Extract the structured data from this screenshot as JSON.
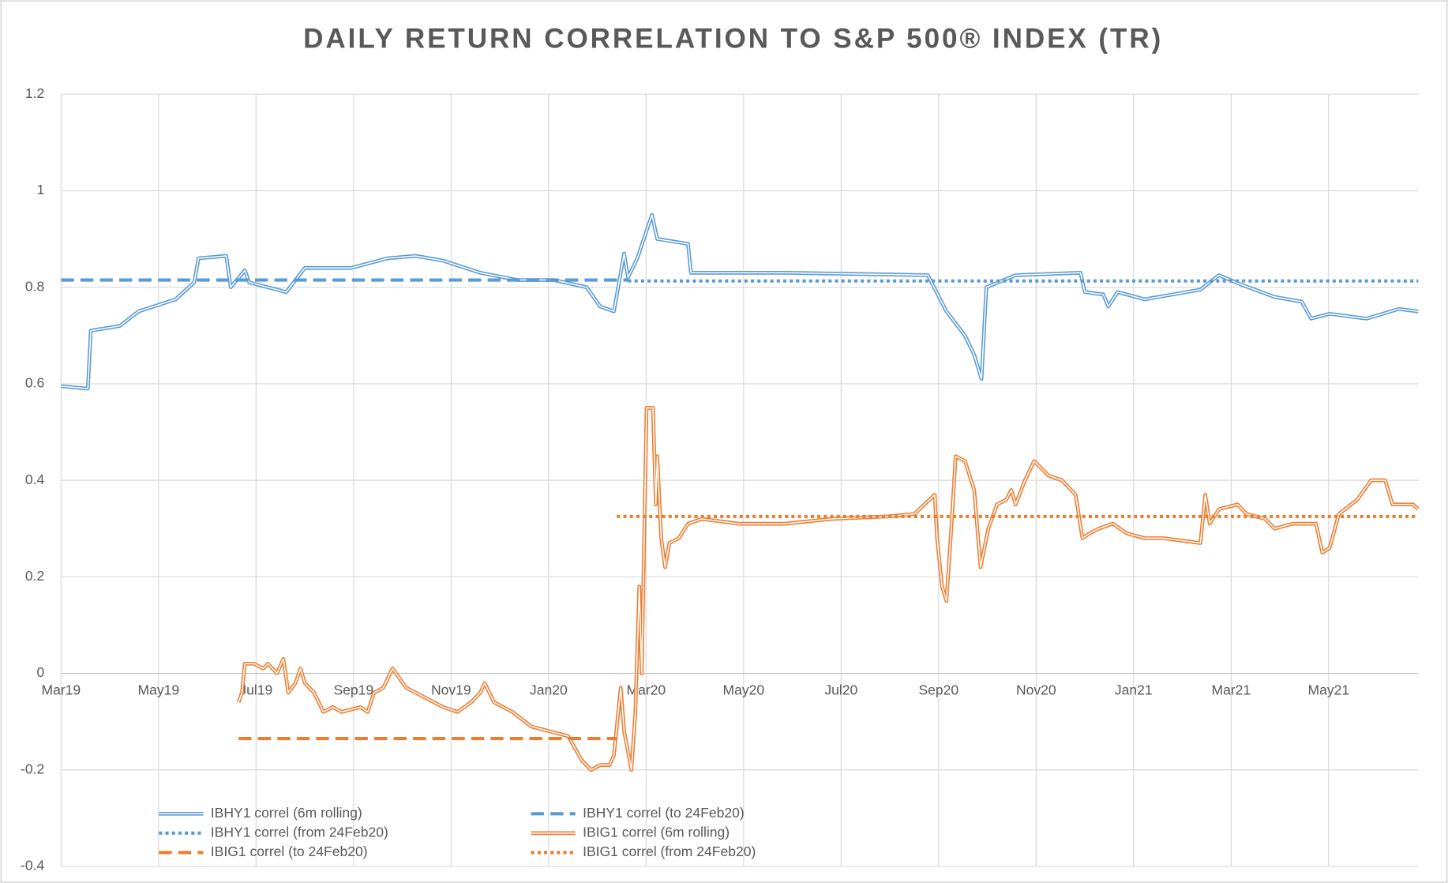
{
  "chart_data": {
    "type": "line",
    "title": "DAILY RETURN CORRELATION TO S&P 500® INDEX (TR)",
    "xlim": [
      0,
      27.84
    ],
    "xticks": [
      {
        "value": 0,
        "label": "Mar19"
      },
      {
        "value": 2,
        "label": "May19"
      },
      {
        "value": 4,
        "label": "Jul19"
      },
      {
        "value": 6,
        "label": "Sep19"
      },
      {
        "value": 8,
        "label": "Nov19"
      },
      {
        "value": 10,
        "label": "Jan20"
      },
      {
        "value": 12,
        "label": "Mar20"
      },
      {
        "value": 14,
        "label": "May20"
      },
      {
        "value": 16,
        "label": "Jul20"
      },
      {
        "value": 18,
        "label": "Sep20"
      },
      {
        "value": 20,
        "label": "Nov20"
      },
      {
        "value": 22,
        "label": "Jan21"
      },
      {
        "value": 24,
        "label": "Mar21"
      },
      {
        "value": 26,
        "label": "May21"
      }
    ],
    "ylim": [
      -0.4,
      1.2
    ],
    "yticks": [
      -0.4,
      -0.2,
      0,
      0.2,
      0.4,
      0.6,
      0.8,
      1,
      1.2
    ],
    "grid": true,
    "legend": "bottom-left",
    "series": [
      {
        "name": "IBHY1 correl (6m rolling)",
        "color": "#5b9bd5",
        "style": "double",
        "x": [
          0.0,
          0.55,
          0.61,
          1.21,
          1.59,
          2.35,
          2.73,
          2.82,
          3.39,
          3.48,
          3.77,
          3.86,
          4.62,
          5.0,
          5.95,
          6.7,
          7.27,
          7.84,
          8.6,
          9.36,
          10.11,
          10.78,
          11.06,
          11.34,
          11.55,
          11.63,
          11.82,
          12.12,
          12.23,
          12.86,
          12.92,
          14.85,
          17.78,
          18.16,
          18.54,
          18.73,
          18.88,
          18.98,
          19.58,
          20.91,
          21.0,
          21.38,
          21.48,
          21.67,
          22.23,
          23.37,
          23.75,
          24.22,
          24.89,
          25.45,
          25.64,
          26.02,
          26.78,
          27.44,
          27.84
        ],
        "values": [
          0.595,
          0.59,
          0.71,
          0.72,
          0.75,
          0.775,
          0.81,
          0.86,
          0.865,
          0.8,
          0.835,
          0.81,
          0.79,
          0.84,
          0.84,
          0.86,
          0.865,
          0.855,
          0.83,
          0.815,
          0.815,
          0.8,
          0.76,
          0.75,
          0.87,
          0.82,
          0.86,
          0.95,
          0.9,
          0.89,
          0.83,
          0.83,
          0.825,
          0.75,
          0.7,
          0.66,
          0.61,
          0.8,
          0.825,
          0.83,
          0.79,
          0.785,
          0.76,
          0.79,
          0.775,
          0.795,
          0.825,
          0.805,
          0.78,
          0.77,
          0.735,
          0.745,
          0.735,
          0.755,
          0.75
        ]
      },
      {
        "name": "IBHY1 correl (to 24Feb20)",
        "color": "#5b9bd5",
        "style": "dashed",
        "x": [
          0,
          11.63
        ],
        "values": [
          0.815,
          0.815
        ]
      },
      {
        "name": "IBHY1 correl (from 24Feb20)",
        "color": "#5b9bd5",
        "style": "dotted",
        "x": [
          11.63,
          27.84
        ],
        "values": [
          0.813,
          0.813
        ]
      },
      {
        "name": "IBIG1 correl (6m rolling)",
        "color": "#ed7d31",
        "style": "double",
        "x": [
          3.64,
          3.71,
          3.77,
          3.96,
          4.15,
          4.24,
          4.43,
          4.56,
          4.66,
          4.81,
          4.91,
          5.0,
          5.19,
          5.38,
          5.57,
          5.76,
          6.14,
          6.29,
          6.42,
          6.61,
          6.8,
          7.08,
          7.46,
          7.84,
          8.13,
          8.41,
          8.6,
          8.69,
          8.88,
          9.26,
          9.64,
          10.02,
          10.4,
          10.68,
          10.87,
          11.06,
          11.25,
          11.34,
          11.48,
          11.55,
          11.7,
          11.78,
          11.86,
          11.91,
          12.01,
          12.14,
          12.2,
          12.23,
          12.31,
          12.39,
          12.48,
          12.67,
          12.86,
          13.14,
          13.9,
          14.85,
          15.8,
          16.93,
          17.5,
          17.92,
          17.97,
          18.07,
          18.16,
          18.26,
          18.35,
          18.54,
          18.73,
          18.86,
          19.02,
          19.2,
          19.39,
          19.49,
          19.58,
          19.77,
          19.96,
          20.25,
          20.53,
          20.81,
          20.95,
          21.1,
          21.29,
          21.57,
          21.86,
          22.23,
          22.61,
          22.99,
          23.37,
          23.47,
          23.56,
          23.75,
          24.13,
          24.32,
          24.7,
          24.89,
          25.27,
          25.74,
          25.87,
          26.02,
          26.21,
          26.59,
          26.87,
          27.16,
          27.31,
          27.73,
          27.84
        ],
        "values": [
          -0.06,
          -0.04,
          0.02,
          0.02,
          0.01,
          0.02,
          0.0,
          0.03,
          -0.04,
          -0.02,
          0.01,
          -0.02,
          -0.04,
          -0.08,
          -0.07,
          -0.08,
          -0.07,
          -0.08,
          -0.04,
          -0.03,
          0.01,
          -0.03,
          -0.05,
          -0.07,
          -0.08,
          -0.06,
          -0.04,
          -0.02,
          -0.06,
          -0.08,
          -0.11,
          -0.12,
          -0.13,
          -0.18,
          -0.2,
          -0.19,
          -0.19,
          -0.17,
          -0.03,
          -0.12,
          -0.2,
          -0.08,
          0.18,
          0.0,
          0.55,
          0.55,
          0.35,
          0.45,
          0.28,
          0.22,
          0.27,
          0.28,
          0.31,
          0.32,
          0.31,
          0.31,
          0.32,
          0.325,
          0.33,
          0.37,
          0.28,
          0.18,
          0.15,
          0.3,
          0.45,
          0.44,
          0.38,
          0.22,
          0.3,
          0.35,
          0.36,
          0.38,
          0.35,
          0.4,
          0.44,
          0.41,
          0.4,
          0.37,
          0.28,
          0.29,
          0.3,
          0.31,
          0.29,
          0.28,
          0.28,
          0.275,
          0.27,
          0.37,
          0.31,
          0.34,
          0.35,
          0.33,
          0.32,
          0.3,
          0.31,
          0.31,
          0.25,
          0.26,
          0.33,
          0.36,
          0.4,
          0.4,
          0.35,
          0.35,
          0.34
        ]
      },
      {
        "name": "IBIG1 correl (to 24Feb20)",
        "color": "#ed7d31",
        "style": "dashed",
        "x": [
          3.64,
          11.4
        ],
        "values": [
          -0.135,
          -0.135
        ]
      },
      {
        "name": "IBIG1 correl (from 24Feb20)",
        "color": "#ed7d31",
        "style": "dotted",
        "x": [
          11.4,
          27.84
        ],
        "values": [
          0.325,
          0.325
        ]
      }
    ]
  }
}
